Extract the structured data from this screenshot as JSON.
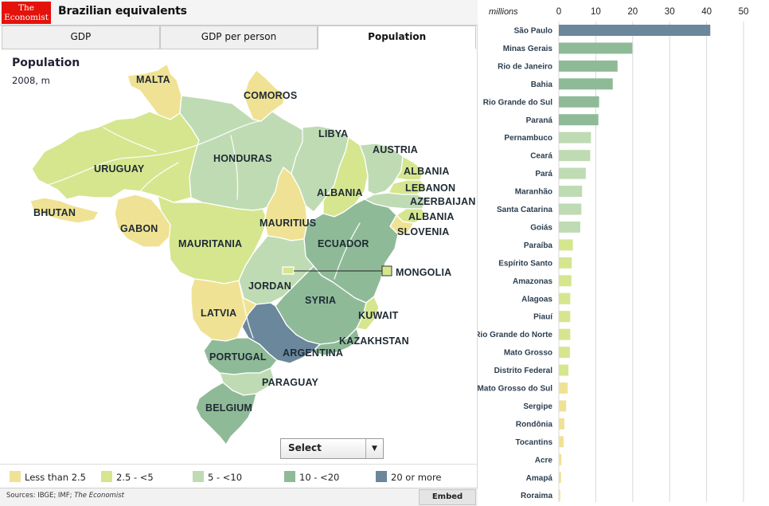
{
  "header": {
    "logo_line1": "The",
    "logo_line2": "Economist",
    "title": "Brazilian equivalents"
  },
  "tabs": [
    {
      "label": "GDP",
      "active": false
    },
    {
      "label": "GDP per person",
      "active": false
    },
    {
      "label": "Population",
      "active": true
    }
  ],
  "map": {
    "title": "Population",
    "subtitle": "2008, m",
    "states": [
      {
        "label": "MALTA",
        "class": "lt2_5"
      },
      {
        "label": "COMOROS",
        "class": "lt2_5"
      },
      {
        "label": "LIBYA",
        "class": "5_10"
      },
      {
        "label": "AUSTRIA",
        "class": "5_10"
      },
      {
        "label": "URUGUAY",
        "class": "2_5_5"
      },
      {
        "label": "HONDURAS",
        "class": "5_10"
      },
      {
        "label": "ALBANIA",
        "class": "2_5_5"
      },
      {
        "label": "ALBANIA",
        "class": "2_5_5"
      },
      {
        "label": "LEBANON",
        "class": "2_5_5"
      },
      {
        "label": "AZERBAIJAN",
        "class": "5_10"
      },
      {
        "label": "ALBANIA",
        "class": "2_5_5"
      },
      {
        "label": "SLOVENIA",
        "class": "lt2_5"
      },
      {
        "label": "BHUTAN",
        "class": "lt2_5"
      },
      {
        "label": "GABON",
        "class": "lt2_5"
      },
      {
        "label": "MAURITIUS",
        "class": "lt2_5"
      },
      {
        "label": "MAURITANIA",
        "class": "2_5_5"
      },
      {
        "label": "ECUADOR",
        "class": "10_20"
      },
      {
        "label": "MONGOLIA",
        "class": "2_5_5"
      },
      {
        "label": "JORDAN",
        "class": "5_10"
      },
      {
        "label": "SYRIA",
        "class": "10_20"
      },
      {
        "label": "LATVIA",
        "class": "lt2_5"
      },
      {
        "label": "KUWAIT",
        "class": "2_5_5"
      },
      {
        "label": "KAZAKHSTAN",
        "class": "10_20"
      },
      {
        "label": "ARGENTINA",
        "class": "20plus"
      },
      {
        "label": "PORTUGAL",
        "class": "10_20"
      },
      {
        "label": "PARAGUAY",
        "class": "5_10"
      },
      {
        "label": "BELGIUM",
        "class": "10_20"
      }
    ],
    "select_label": "Select",
    "select_arrow": "▼"
  },
  "legend": [
    {
      "label": "Less than 2.5",
      "color": "#f0e294"
    },
    {
      "label": "2.5 - <5",
      "color": "#d5e68f"
    },
    {
      "label": "5 - <10",
      "color": "#bfdbb3"
    },
    {
      "label": "10 - <20",
      "color": "#8fba98"
    },
    {
      "label": "20 or more",
      "color": "#6a879c"
    }
  ],
  "footer": {
    "sources_prefix": "Sources: IBGE; IMF; ",
    "sources_italic": "The Economist",
    "embed_label": "Embed"
  },
  "chart_data": {
    "type": "bar",
    "orientation": "horizontal",
    "unit_label": "millions",
    "xlim": [
      0,
      50
    ],
    "xticks": [
      0,
      10,
      20,
      30,
      40,
      50
    ],
    "grid": true,
    "categories": [
      "São Paulo",
      "Minas Gerais",
      "Rio de Janeiro",
      "Bahia",
      "Rio Grande do Sul",
      "Paraná",
      "Pernambuco",
      "Ceará",
      "Pará",
      "Maranhão",
      "Santa Catarina",
      "Goiás",
      "Paraíba",
      "Espírito Santo",
      "Amazonas",
      "Alagoas",
      "Piauí",
      "Rio Grande do Norte",
      "Mato Grosso",
      "Distrito Federal",
      "Mato Grosso do Sul",
      "Sergipe",
      "Rondônia",
      "Tocantins",
      "Acre",
      "Amapá",
      "Roraima"
    ],
    "values": [
      41.0,
      19.9,
      15.9,
      14.6,
      10.9,
      10.7,
      8.7,
      8.5,
      7.3,
      6.3,
      6.1,
      5.8,
      3.8,
      3.5,
      3.4,
      3.1,
      3.1,
      3.1,
      3.0,
      2.6,
      2.4,
      2.0,
      1.5,
      1.3,
      0.7,
      0.6,
      0.4
    ],
    "bar_colors": [
      "#6a879c",
      "#8fba98",
      "#8fba98",
      "#8fba98",
      "#8fba98",
      "#8fba98",
      "#bfdbb3",
      "#bfdbb3",
      "#bfdbb3",
      "#bfdbb3",
      "#bfdbb3",
      "#bfdbb3",
      "#d5e68f",
      "#d5e68f",
      "#d5e68f",
      "#d5e68f",
      "#d5e68f",
      "#d5e68f",
      "#d5e68f",
      "#d5e68f",
      "#f0e294",
      "#f0e294",
      "#f0e294",
      "#f0e294",
      "#f0e294",
      "#f0e294",
      "#f0e294"
    ]
  }
}
